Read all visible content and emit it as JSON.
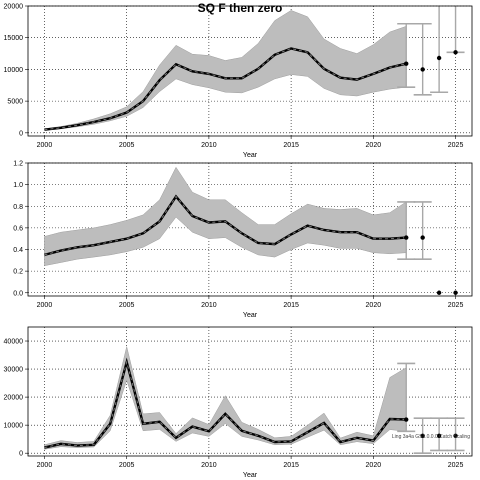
{
  "title": "SQ F then zero",
  "colors": {
    "band": "#bdbdbd",
    "band_edge": "#9e9e9e",
    "line": "#000000",
    "dash": "#333333",
    "interval": "#a8a8a8",
    "grid": "#000000"
  },
  "chart_data": [
    {
      "type": "line",
      "xlim": [
        1999,
        2026
      ],
      "ylim": [
        -500,
        20000
      ],
      "xticks": [
        "2000",
        "2005",
        "2010",
        "2015",
        "2020",
        "2025"
      ],
      "yticks": [
        "0",
        "5000",
        "10000",
        "15000",
        "20000"
      ],
      "ytick_values": [
        0,
        5000,
        10000,
        15000,
        20000
      ],
      "xlabel": "Year",
      "ylabel": "",
      "grid": true,
      "x": [
        2000,
        2001,
        2002,
        2003,
        2004,
        2005,
        2006,
        2007,
        2008,
        2009,
        2010,
        2011,
        2012,
        2013,
        2014,
        2015,
        2016,
        2017,
        2018,
        2019,
        2020,
        2021,
        2022
      ],
      "median": [
        500,
        800,
        1200,
        1700,
        2300,
        3200,
        5000,
        8300,
        10800,
        9700,
        9300,
        8600,
        8600,
        10100,
        12300,
        13300,
        12700,
        10100,
        8700,
        8400,
        9300,
        10300,
        10900
      ],
      "lower": [
        400,
        650,
        950,
        1350,
        1900,
        2600,
        4000,
        6500,
        8500,
        7600,
        7100,
        6400,
        6300,
        7200,
        8500,
        9200,
        8900,
        7000,
        6000,
        5800,
        6400,
        6900,
        7200
      ],
      "upper": [
        650,
        1000,
        1500,
        2200,
        3000,
        4100,
        6500,
        10700,
        13800,
        12400,
        12200,
        11400,
        11900,
        14100,
        17700,
        19300,
        18300,
        14800,
        13300,
        12500,
        13900,
        15900,
        16800
      ],
      "projections": [
        {
          "x": 2022,
          "value": 10900,
          "lower": 7200,
          "upper": 17200
        },
        {
          "x": 2023,
          "value": 10000,
          "lower": 6000,
          "upper": 17200
        },
        {
          "x": 2024,
          "value": 11800,
          "lower": 6400,
          "upper": 21000
        },
        {
          "x": 2025,
          "value": 12700,
          "lower": 12700,
          "upper": 21000
        }
      ],
      "annotation": ""
    },
    {
      "type": "line",
      "xlim": [
        1999,
        2026
      ],
      "ylim": [
        -0.03,
        1.2
      ],
      "xticks": [
        "2000",
        "2005",
        "2010",
        "2015",
        "2020",
        "2025"
      ],
      "yticks": [
        "0.0",
        "0.2",
        "0.4",
        "0.6",
        "0.8",
        "1.0",
        "1.2"
      ],
      "ytick_values": [
        0,
        0.2,
        0.4,
        0.6,
        0.8,
        1.0,
        1.2
      ],
      "xlabel": "Year",
      "ylabel": "",
      "grid": true,
      "x": [
        2000,
        2001,
        2002,
        2003,
        2004,
        2005,
        2006,
        2007,
        2008,
        2009,
        2010,
        2011,
        2012,
        2013,
        2014,
        2015,
        2016,
        2017,
        2018,
        2019,
        2020,
        2021,
        2022
      ],
      "median": [
        0.35,
        0.39,
        0.42,
        0.44,
        0.47,
        0.5,
        0.55,
        0.66,
        0.89,
        0.71,
        0.65,
        0.66,
        0.55,
        0.46,
        0.45,
        0.54,
        0.62,
        0.58,
        0.56,
        0.56,
        0.5,
        0.5,
        0.51
      ],
      "lower": [
        0.25,
        0.28,
        0.31,
        0.33,
        0.35,
        0.38,
        0.42,
        0.5,
        0.7,
        0.56,
        0.5,
        0.51,
        0.42,
        0.35,
        0.33,
        0.4,
        0.46,
        0.44,
        0.41,
        0.41,
        0.37,
        0.36,
        0.37
      ],
      "upper": [
        0.52,
        0.56,
        0.58,
        0.6,
        0.63,
        0.67,
        0.72,
        0.86,
        1.16,
        0.93,
        0.86,
        0.86,
        0.74,
        0.63,
        0.63,
        0.73,
        0.82,
        0.78,
        0.77,
        0.78,
        0.72,
        0.74,
        0.84
      ],
      "projections": [
        {
          "x": 2022,
          "value": 0.51,
          "lower": 0.31,
          "upper": 0.84
        },
        {
          "x": 2023,
          "value": 0.51,
          "lower": 0.31,
          "upper": 0.84
        },
        {
          "x": 2024,
          "value": 0.0,
          "lower": 0.0,
          "upper": 0.0
        },
        {
          "x": 2025,
          "value": 0.0,
          "lower": 0.0,
          "upper": 0.0
        }
      ],
      "annotation": ""
    },
    {
      "type": "line",
      "xlim": [
        1999,
        2026
      ],
      "ylim": [
        -1000,
        45000
      ],
      "xticks": [
        "2000",
        "2005",
        "2010",
        "2015",
        "2020",
        "2025"
      ],
      "yticks": [
        "0",
        "10000",
        "20000",
        "30000",
        "40000"
      ],
      "ytick_values": [
        0,
        10000,
        20000,
        30000,
        40000
      ],
      "xlabel": "Year",
      "ylabel": "",
      "grid": true,
      "x": [
        2000,
        2001,
        2002,
        2003,
        2004,
        2005,
        2006,
        2007,
        2008,
        2009,
        2010,
        2011,
        2012,
        2013,
        2014,
        2015,
        2016,
        2017,
        2018,
        2019,
        2020,
        2021,
        2022
      ],
      "median": [
        2000,
        3300,
        2700,
        3000,
        10500,
        32500,
        10500,
        11200,
        5500,
        9500,
        7800,
        14000,
        8000,
        6200,
        4000,
        4200,
        7500,
        10800,
        4000,
        5500,
        4500,
        12200,
        12000
      ],
      "lower": [
        1400,
        2300,
        2000,
        2200,
        8000,
        26000,
        8000,
        8500,
        4200,
        7200,
        6000,
        10600,
        6000,
        4700,
        3000,
        3200,
        5700,
        8200,
        3000,
        4100,
        3400,
        8400,
        7800
      ],
      "upper": [
        3000,
        4500,
        3800,
        4200,
        13500,
        38000,
        14000,
        14500,
        7000,
        12600,
        10200,
        20500,
        11000,
        8500,
        5500,
        6000,
        10000,
        14300,
        5400,
        7500,
        6200,
        27000,
        30500
      ],
      "projections": [
        {
          "x": 2022,
          "value": 12000,
          "lower": 7800,
          "upper": 32000
        },
        {
          "x": 2023,
          "value": 6200,
          "lower": 0,
          "upper": 12500
        },
        {
          "x": 2024,
          "value": 6200,
          "lower": 1000,
          "upper": 12500
        },
        {
          "x": 2025,
          "value": 6200,
          "lower": 1000,
          "upper": 12500
        }
      ],
      "annotation": "Ling 3a4a GS1.0.0.0 Catch Scaling"
    }
  ]
}
